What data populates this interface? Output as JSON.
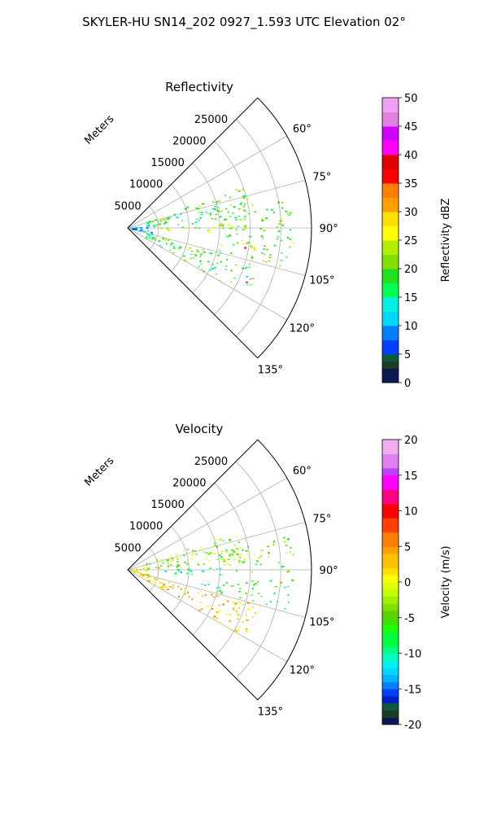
{
  "figure": {
    "suptitle": "SKYLER-HU  SN14_202  0927_1.593 UTC Elevation 02°"
  },
  "chart_data": [
    {
      "type": "heatmap",
      "projection": "polar-sector",
      "title": "Reflectivity",
      "radial_label": "Meters",
      "radial_ticks": [
        "5000",
        "10000",
        "15000",
        "20000",
        "25000"
      ],
      "radial_tick_values": [
        5000,
        10000,
        15000,
        20000,
        25000
      ],
      "rlim": [
        0,
        30000
      ],
      "angle_ticks": [
        "60°",
        "75°",
        "90°",
        "105°",
        "120°",
        "135°"
      ],
      "angle_tick_values": [
        60,
        75,
        90,
        105,
        120,
        135
      ],
      "theta_range_deg": [
        45,
        135
      ],
      "grid": true,
      "colorbar": {
        "label": "Reflectivity dBZ",
        "range": [
          0,
          50
        ],
        "ticks": [
          "0",
          "5",
          "10",
          "15",
          "20",
          "25",
          "30",
          "35",
          "40",
          "45",
          "50"
        ],
        "tick_values": [
          0,
          5,
          10,
          15,
          20,
          25,
          30,
          35,
          40,
          45,
          50
        ]
      },
      "features": [
        {
          "azimuth": [
            70,
            86
          ],
          "range": [
            3000,
            20000
          ],
          "value": 18
        },
        {
          "azimuth": [
            88,
            93
          ],
          "range": [
            5000,
            20000
          ],
          "value": 22
        },
        {
          "azimuth": [
            93,
            104
          ],
          "range": [
            15000,
            27000
          ],
          "value": 20
        },
        {
          "azimuth": [
            78,
            91
          ],
          "range": [
            15000,
            27000
          ],
          "value": 20
        },
        {
          "azimuth": [
            105,
            120
          ],
          "range": [
            3000,
            22000
          ],
          "value": 18
        },
        {
          "azimuth": [
            80,
            105
          ],
          "range": [
            500,
            4000
          ],
          "value": 8
        },
        {
          "azimuth": [
            96,
            100
          ],
          "range": [
            19000,
            21000
          ],
          "value": 36
        },
        {
          "azimuth": [
            112,
            115
          ],
          "range": [
            20000,
            22000
          ],
          "value": 38
        }
      ]
    },
    {
      "type": "heatmap",
      "projection": "polar-sector",
      "title": "Velocity",
      "radial_label": "Meters",
      "radial_ticks": [
        "5000",
        "10000",
        "15000",
        "20000",
        "25000"
      ],
      "radial_tick_values": [
        5000,
        10000,
        15000,
        20000,
        25000
      ],
      "rlim": [
        0,
        30000
      ],
      "angle_ticks": [
        "60°",
        "75°",
        "90°",
        "105°",
        "120°",
        "135°"
      ],
      "angle_tick_values": [
        60,
        75,
        90,
        105,
        120,
        135
      ],
      "theta_range_deg": [
        45,
        135
      ],
      "grid": true,
      "colorbar": {
        "label": "Velocity (m/s)",
        "range": [
          -20,
          20
        ],
        "ticks": [
          "-20",
          "-15",
          "-10",
          "-5",
          "0",
          "5",
          "10",
          "15",
          "20"
        ],
        "tick_values": [
          -20,
          -15,
          -10,
          -5,
          0,
          5,
          10,
          15,
          20
        ]
      },
      "features": [
        {
          "azimuth": [
            70,
            86
          ],
          "range": [
            3000,
            20000
          ],
          "value": -3
        },
        {
          "azimuth": [
            88,
            95
          ],
          "range": [
            6000,
            16000
          ],
          "value": -10
        },
        {
          "azimuth": [
            93,
            104
          ],
          "range": [
            15000,
            27000
          ],
          "value": -7
        },
        {
          "azimuth": [
            78,
            91
          ],
          "range": [
            15000,
            27000
          ],
          "value": -4
        },
        {
          "azimuth": [
            105,
            120
          ],
          "range": [
            2000,
            22000
          ],
          "value": 3
        },
        {
          "azimuth": [
            80,
            105
          ],
          "range": [
            300,
            3500
          ],
          "value": 0
        },
        {
          "azimuth": [
            97,
            101
          ],
          "range": [
            12000,
            16000
          ],
          "value": -12
        }
      ]
    }
  ]
}
